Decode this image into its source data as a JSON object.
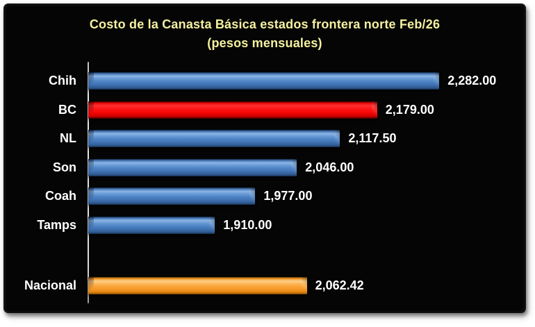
{
  "title": {
    "line1": "Costo de la Canasta Básica estados frontera norte Feb/26",
    "line2": "(pesos mensuales)"
  },
  "chart_data": {
    "type": "bar",
    "orientation": "horizontal",
    "title": "Costo de la Canasta Básica estados frontera norte Feb/26",
    "subtitle": "(pesos mensuales)",
    "xlim": [
      1700,
      2400
    ],
    "grid": false,
    "legend": false,
    "categories": [
      "Chih",
      "BC",
      "NL",
      "Son",
      "Coah",
      "Tamps",
      "Nacional"
    ],
    "values": [
      2282.0,
      2179.0,
      2117.5,
      2046.0,
      1977.0,
      1910.0,
      2062.42
    ],
    "items": [
      {
        "category": "Chih",
        "value": 2282.0,
        "value_label": "2,282.00",
        "color": "blue",
        "separated": false
      },
      {
        "category": "BC",
        "value": 2179.0,
        "value_label": "2,179.00",
        "color": "red",
        "separated": false
      },
      {
        "category": "NL",
        "value": 2117.5,
        "value_label": "2,117.50",
        "color": "blue",
        "separated": false
      },
      {
        "category": "Son",
        "value": 2046.0,
        "value_label": "2,046.00",
        "color": "blue",
        "separated": false
      },
      {
        "category": "Coah",
        "value": 1977.0,
        "value_label": "1,977.00",
        "color": "blue",
        "separated": false
      },
      {
        "category": "Tamps",
        "value": 1910.0,
        "value_label": "1,910.00",
        "color": "blue",
        "separated": false
      },
      {
        "category": "Nacional",
        "value": 2062.42,
        "value_label": "2,062.42",
        "color": "orange",
        "separated": true
      }
    ],
    "colors": {
      "blue": "#4f85c6",
      "red": "#fe1010",
      "orange": "#f9a133",
      "title_text": "#f5f1a0",
      "label_text": "#ffffff",
      "background": "#050505",
      "page_background": "#ffffff"
    }
  }
}
